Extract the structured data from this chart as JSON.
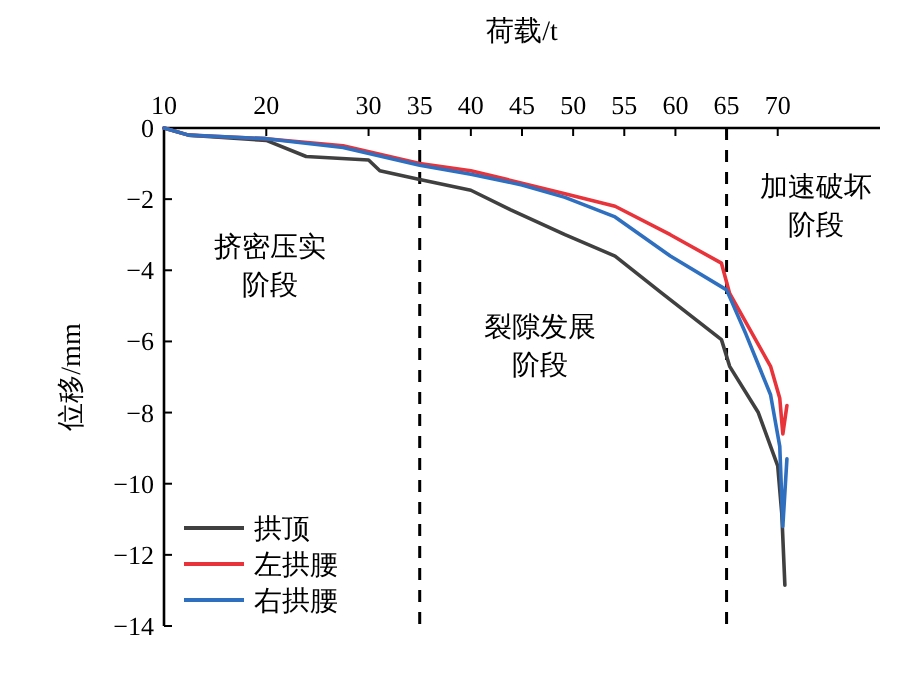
{
  "chart_data": {
    "type": "line",
    "xlabel": "荷载/t",
    "ylabel": "位移/mm",
    "xlim": [
      10,
      80
    ],
    "ylim": [
      -14,
      0
    ],
    "xticks": [
      10,
      20,
      30,
      35,
      40,
      45,
      50,
      55,
      60,
      65,
      70
    ],
    "yticks": [
      0,
      -2,
      -4,
      -6,
      -8,
      -10,
      -12,
      -14
    ],
    "legend": "bottom left",
    "series": [
      {
        "name": "拱顶",
        "color": "#404040",
        "x": [
          10,
          12.4,
          20,
          23.9,
          30,
          31.1,
          35,
          40,
          43.9,
          49.2,
          54.1,
          58.7,
          64.5,
          65.3,
          68.1,
          70,
          70.4,
          70.7
        ],
        "values": [
          0,
          -0.2,
          -0.35,
          -0.8,
          -0.9,
          -1.2,
          -1.45,
          -1.75,
          -2.3,
          -3.0,
          -3.6,
          -4.65,
          -5.95,
          -6.7,
          -8.0,
          -9.5,
          -10.85,
          -12.85
        ]
      },
      {
        "name": "左拱腰",
        "color": "#e8333a",
        "x": [
          10,
          12.4,
          20,
          27.5,
          35,
          40,
          45,
          49.2,
          54.1,
          59.5,
          64.5,
          65.3,
          69.3,
          70.2,
          70.5,
          70.9
        ],
        "values": [
          0,
          -0.2,
          -0.3,
          -0.5,
          -1.0,
          -1.2,
          -1.55,
          -1.85,
          -2.2,
          -3.0,
          -3.8,
          -4.65,
          -6.7,
          -7.6,
          -8.6,
          -7.8
        ]
      },
      {
        "name": "右拱腰",
        "color": "#2f6fc0",
        "x": [
          10,
          12.4,
          20,
          27.5,
          35,
          40,
          45,
          49.2,
          54.1,
          59.5,
          65,
          66.9,
          69.3,
          70.2,
          70.5,
          70.9
        ],
        "values": [
          0,
          -0.2,
          -0.3,
          -0.55,
          -1.05,
          -1.3,
          -1.6,
          -1.95,
          -2.5,
          -3.6,
          -4.55,
          -5.8,
          -7.5,
          -8.95,
          -11.2,
          -9.3
        ]
      }
    ],
    "ref_lines": [
      {
        "axis": "x",
        "value": 35,
        "color": "#000000",
        "line_style": "dashed"
      },
      {
        "axis": "x",
        "value": 65,
        "color": "#000000",
        "line_style": "dashed"
      }
    ],
    "annotations": [
      "挤密压实阶段",
      "裂隙发展阶段",
      "加速破坏阶段"
    ]
  }
}
